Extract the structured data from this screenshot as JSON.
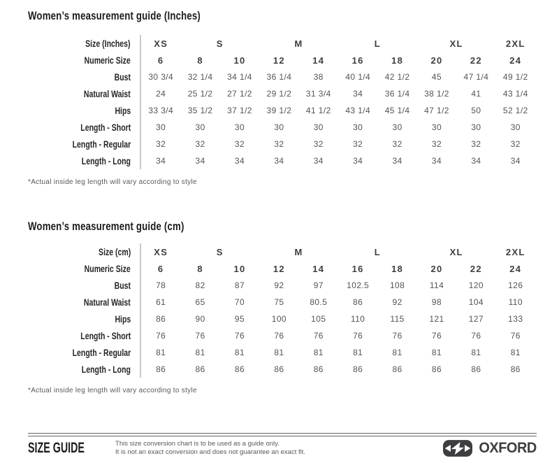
{
  "chart_data": [
    {
      "type": "table",
      "title": "Women’s measurement guide (Inches)",
      "unit": "Inches",
      "size_row_label": "Size (Inches)",
      "size_groups": [
        {
          "label": "XS",
          "span": 1
        },
        {
          "label": "S",
          "span": 2
        },
        {
          "label": "M",
          "span": 2
        },
        {
          "label": "L",
          "span": 2
        },
        {
          "label": "XL",
          "span": 2
        },
        {
          "label": "2XL",
          "span": 1
        }
      ],
      "numeric_row_label": "Numeric Size",
      "numeric_sizes": [
        "6",
        "8",
        "10",
        "12",
        "14",
        "16",
        "18",
        "20",
        "22",
        "24"
      ],
      "rows": [
        {
          "label": "Bust",
          "values": [
            "30 3/4",
            "32 1/4",
            "34 1/4",
            "36 1/4",
            "38",
            "40 1/4",
            "42 1/2",
            "45",
            "47 1/4",
            "49 1/2"
          ]
        },
        {
          "label": "Natural Waist",
          "values": [
            "24",
            "25 1/2",
            "27 1/2",
            "29 1/2",
            "31 3/4",
            "34",
            "36 1/4",
            "38 1/2",
            "41",
            "43 1/4"
          ]
        },
        {
          "label": "Hips",
          "values": [
            "33 3/4",
            "35 1/2",
            "37 1/2",
            "39 1/2",
            "41 1/2",
            "43 1/4",
            "45 1/4",
            "47 1/2",
            "50",
            "52 1/2"
          ]
        },
        {
          "label": "Length - Short",
          "values": [
            "30",
            "30",
            "30",
            "30",
            "30",
            "30",
            "30",
            "30",
            "30",
            "30"
          ]
        },
        {
          "label": "Length - Regular",
          "values": [
            "32",
            "32",
            "32",
            "32",
            "32",
            "32",
            "32",
            "32",
            "32",
            "32"
          ]
        },
        {
          "label": "Length - Long",
          "values": [
            "34",
            "34",
            "34",
            "34",
            "34",
            "34",
            "34",
            "34",
            "34",
            "34"
          ]
        }
      ],
      "footnote": "*Actual inside leg length will vary according to style"
    },
    {
      "type": "table",
      "title": "Women’s measurement guide (cm)",
      "unit": "cm",
      "size_row_label": "Size (cm)",
      "size_groups": [
        {
          "label": "XS",
          "span": 1
        },
        {
          "label": "S",
          "span": 2
        },
        {
          "label": "M",
          "span": 2
        },
        {
          "label": "L",
          "span": 2
        },
        {
          "label": "XL",
          "span": 2
        },
        {
          "label": "2XL",
          "span": 1
        }
      ],
      "numeric_row_label": "Numeric Size",
      "numeric_sizes": [
        "6",
        "8",
        "10",
        "12",
        "14",
        "16",
        "18",
        "20",
        "22",
        "24"
      ],
      "rows": [
        {
          "label": "Bust",
          "values": [
            "78",
            "82",
            "87",
            "92",
            "97",
            "102.5",
            "108",
            "114",
            "120",
            "126"
          ]
        },
        {
          "label": "Natural Waist",
          "values": [
            "61",
            "65",
            "70",
            "75",
            "80.5",
            "86",
            "92",
            "98",
            "104",
            "110"
          ]
        },
        {
          "label": "Hips",
          "values": [
            "86",
            "90",
            "95",
            "100",
            "105",
            "110",
            "115",
            "121",
            "127",
            "133"
          ]
        },
        {
          "label": "Length - Short",
          "values": [
            "76",
            "76",
            "76",
            "76",
            "76",
            "76",
            "76",
            "76",
            "76",
            "76"
          ]
        },
        {
          "label": "Length - Regular",
          "values": [
            "81",
            "81",
            "81",
            "81",
            "81",
            "81",
            "81",
            "81",
            "81",
            "81"
          ]
        },
        {
          "label": "Length - Long",
          "values": [
            "86",
            "86",
            "86",
            "86",
            "86",
            "86",
            "86",
            "86",
            "86",
            "86"
          ]
        }
      ],
      "footnote": "*Actual inside leg length will vary according to style"
    }
  ],
  "footer": {
    "badge_label": "SIZE GUIDE",
    "note_line1": "This size conversion chart is to be used as a guide only.",
    "note_line2": "It is not an exact conversion and does not guarantee an exact fit.",
    "brand": "OXFORD",
    "brand_icon": "oxford-double-arrow-icon"
  },
  "colors": {
    "label_text": "#262626",
    "value_text": "#545456",
    "divider": "#c9c9c9",
    "footer_rule": "#636366",
    "logo": "#3e3e40",
    "background": "#ffffff"
  }
}
